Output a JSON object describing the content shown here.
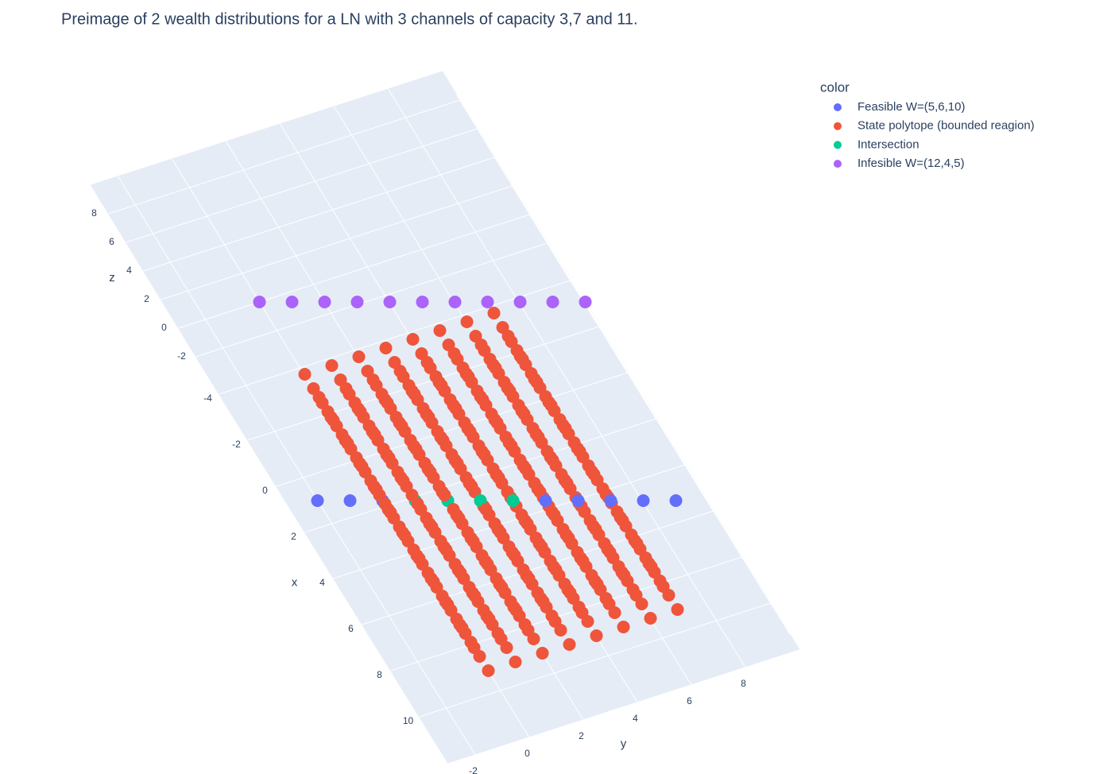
{
  "chart_data": {
    "type": "scatter3d",
    "title": "Preimage of 2 wealth distributions for a LN with 3 channels of capacity 3,7 and 11.",
    "x_label": "x",
    "y_label": "y",
    "z_label": "z",
    "legend_title": "color",
    "xlim": [
      -5,
      12
    ],
    "ylim": [
      -3,
      10
    ],
    "zlim": [
      -3,
      10
    ],
    "xticks": [
      -4,
      -2,
      0,
      2,
      4,
      6,
      8,
      10
    ],
    "yticks": [
      -2,
      0,
      2,
      4,
      6,
      8
    ],
    "zticks": [
      -2,
      0,
      2,
      4,
      6,
      8
    ],
    "grid": true,
    "series": [
      {
        "name": "Feasible W=(5,6,10)",
        "color": "#636efa",
        "x": [
          1,
          2,
          3,
          8,
          9,
          10,
          11,
          12
        ],
        "y": [
          -2,
          -1,
          0,
          5,
          6,
          7,
          8,
          9
        ],
        "z": [
          -3,
          -2,
          -1,
          4,
          5,
          6,
          7,
          8
        ]
      },
      {
        "name": "State polytope (bounded reagion)",
        "color": "#ef553b",
        "x": [
          0,
          0,
          0,
          0,
          0,
          0,
          0,
          0,
          0,
          0,
          0,
          0,
          0,
          0,
          0,
          0,
          0,
          0,
          0,
          0,
          0,
          0,
          0,
          0,
          0,
          0,
          0,
          0,
          0,
          0,
          0,
          0,
          1,
          1,
          1,
          1,
          1,
          1,
          1,
          1,
          1,
          1,
          1,
          1,
          1,
          1,
          1,
          1,
          1,
          1,
          1,
          1,
          1,
          1,
          1,
          1,
          1,
          1,
          1,
          1,
          1,
          1,
          1,
          1,
          2,
          2,
          2,
          2,
          2,
          2,
          2,
          2,
          2,
          2,
          2,
          2,
          2,
          2,
          2,
          2,
          2,
          2,
          2,
          2,
          2,
          2,
          2,
          2,
          2,
          2,
          2,
          2,
          2,
          2,
          2,
          2,
          3,
          3,
          3,
          3,
          3,
          3,
          3,
          3,
          3,
          3,
          3,
          3,
          3,
          3,
          3,
          3,
          3,
          3,
          3,
          3,
          3,
          3,
          3,
          3,
          3,
          3,
          3,
          3,
          3,
          3,
          3,
          3,
          4,
          4,
          4,
          4,
          4,
          4,
          4,
          4,
          4,
          4,
          4,
          4,
          4,
          4,
          4,
          4,
          4,
          4,
          4,
          4,
          4,
          4,
          4,
          4,
          4,
          4,
          4,
          4,
          4,
          4,
          4,
          4,
          5,
          5,
          5,
          5,
          5,
          5,
          5,
          5,
          5,
          5,
          5,
          5,
          5,
          5,
          5,
          5,
          5,
          5,
          5,
          5,
          5,
          5,
          5,
          5,
          5,
          5,
          5,
          5,
          5,
          5,
          5,
          5,
          6,
          6,
          6,
          6,
          6,
          6,
          6,
          6,
          6,
          6,
          6,
          6,
          6,
          6,
          6,
          6,
          6,
          6,
          6,
          6,
          6,
          6,
          6,
          6,
          6,
          6,
          6,
          6,
          6,
          6,
          6,
          6,
          7,
          7,
          7,
          7,
          7,
          7,
          7,
          7,
          7,
          7,
          7,
          7,
          7,
          7,
          7,
          7,
          7,
          7,
          7,
          7,
          7,
          7,
          7,
          7,
          7,
          7,
          7,
          7,
          7,
          7,
          7,
          7,
          8,
          8,
          8,
          8,
          8,
          8,
          8,
          8,
          8,
          8,
          8,
          8,
          8,
          8,
          8,
          8,
          8,
          8,
          8,
          8,
          8,
          8,
          8,
          8,
          8,
          8,
          8,
          8,
          8,
          8,
          8,
          8,
          9,
          9,
          9,
          9,
          9,
          9,
          9,
          9,
          9,
          9,
          9,
          9,
          9,
          9,
          9,
          9,
          9,
          9,
          9,
          9,
          9,
          9,
          9,
          9,
          9,
          9,
          9,
          9,
          9,
          9,
          9,
          9,
          10,
          10,
          10,
          10,
          10,
          10,
          10,
          10,
          10,
          10,
          10,
          10,
          10,
          10,
          10,
          10,
          10,
          10,
          10,
          10,
          10,
          10,
          10,
          10,
          10,
          10,
          10,
          10,
          10,
          10,
          10,
          10,
          11,
          11,
          11,
          11,
          11,
          11,
          11,
          11,
          11,
          11,
          11,
          11,
          11,
          11,
          11,
          11,
          11,
          11,
          11,
          11,
          11,
          11,
          11,
          11,
          11,
          11,
          11,
          11,
          11,
          11,
          11,
          11
        ],
        "y": [
          0,
          0,
          0,
          0,
          1,
          1,
          1,
          1,
          2,
          2,
          2,
          2,
          3,
          3,
          3,
          3,
          4,
          4,
          4,
          4,
          5,
          5,
          5,
          5,
          6,
          6,
          6,
          6,
          7,
          7,
          7,
          7,
          0,
          0,
          0,
          0,
          1,
          1,
          1,
          1,
          2,
          2,
          2,
          2,
          3,
          3,
          3,
          3,
          4,
          4,
          4,
          4,
          5,
          5,
          5,
          5,
          6,
          6,
          6,
          6,
          7,
          7,
          7,
          7,
          0,
          0,
          0,
          0,
          1,
          1,
          1,
          1,
          2,
          2,
          2,
          2,
          3,
          3,
          3,
          3,
          4,
          4,
          4,
          4,
          5,
          5,
          5,
          5,
          6,
          6,
          6,
          6,
          7,
          7,
          7,
          7,
          0,
          0,
          0,
          0,
          1,
          1,
          1,
          1,
          2,
          2,
          2,
          2,
          3,
          3,
          3,
          3,
          4,
          4,
          4,
          4,
          5,
          5,
          5,
          5,
          6,
          6,
          6,
          6,
          7,
          7,
          7,
          7,
          0,
          0,
          0,
          0,
          1,
          1,
          1,
          1,
          2,
          2,
          2,
          2,
          3,
          3,
          3,
          3,
          4,
          4,
          4,
          4,
          5,
          5,
          5,
          5,
          6,
          6,
          6,
          6,
          7,
          7,
          7,
          7,
          0,
          0,
          0,
          0,
          1,
          1,
          1,
          1,
          2,
          2,
          2,
          2,
          3,
          3,
          3,
          3,
          4,
          4,
          4,
          4,
          5,
          5,
          5,
          5,
          6,
          6,
          6,
          6,
          7,
          7,
          7,
          7,
          0,
          0,
          0,
          0,
          1,
          1,
          1,
          1,
          2,
          2,
          2,
          2,
          3,
          3,
          3,
          3,
          4,
          4,
          4,
          4,
          5,
          5,
          5,
          5,
          6,
          6,
          6,
          6,
          7,
          7,
          7,
          7,
          0,
          0,
          0,
          0,
          1,
          1,
          1,
          1,
          2,
          2,
          2,
          2,
          3,
          3,
          3,
          3,
          4,
          4,
          4,
          4,
          5,
          5,
          5,
          5,
          6,
          6,
          6,
          6,
          7,
          7,
          7,
          7,
          0,
          0,
          0,
          0,
          1,
          1,
          1,
          1,
          2,
          2,
          2,
          2,
          3,
          3,
          3,
          3,
          4,
          4,
          4,
          4,
          5,
          5,
          5,
          5,
          6,
          6,
          6,
          6,
          7,
          7,
          7,
          7,
          0,
          0,
          0,
          0,
          1,
          1,
          1,
          1,
          2,
          2,
          2,
          2,
          3,
          3,
          3,
          3,
          4,
          4,
          4,
          4,
          5,
          5,
          5,
          5,
          6,
          6,
          6,
          6,
          7,
          7,
          7,
          7,
          0,
          0,
          0,
          0,
          1,
          1,
          1,
          1,
          2,
          2,
          2,
          2,
          3,
          3,
          3,
          3,
          4,
          4,
          4,
          4,
          5,
          5,
          5,
          5,
          6,
          6,
          6,
          6,
          7,
          7,
          7,
          7,
          0,
          0,
          0,
          0,
          1,
          1,
          1,
          1,
          2,
          2,
          2,
          2,
          3,
          3,
          3,
          3,
          4,
          4,
          4,
          4,
          5,
          5,
          5,
          5,
          6,
          6,
          6,
          6,
          7,
          7,
          7,
          7
        ],
        "z": [
          0,
          1,
          2,
          3,
          0,
          1,
          2,
          3,
          0,
          1,
          2,
          3,
          0,
          1,
          2,
          3,
          0,
          1,
          2,
          3,
          0,
          1,
          2,
          3,
          0,
          1,
          2,
          3,
          0,
          1,
          2,
          3,
          0,
          1,
          2,
          3,
          0,
          1,
          2,
          3,
          0,
          1,
          2,
          3,
          0,
          1,
          2,
          3,
          0,
          1,
          2,
          3,
          0,
          1,
          2,
          3,
          0,
          1,
          2,
          3,
          0,
          1,
          2,
          3,
          0,
          1,
          2,
          3,
          0,
          1,
          2,
          3,
          0,
          1,
          2,
          3,
          0,
          1,
          2,
          3,
          0,
          1,
          2,
          3,
          0,
          1,
          2,
          3,
          0,
          1,
          2,
          3,
          0,
          1,
          2,
          3,
          0,
          1,
          2,
          3,
          0,
          1,
          2,
          3,
          0,
          1,
          2,
          3,
          0,
          1,
          2,
          3,
          0,
          1,
          2,
          3,
          0,
          1,
          2,
          3,
          0,
          1,
          2,
          3,
          0,
          1,
          2,
          3,
          0,
          1,
          2,
          3,
          0,
          1,
          2,
          3,
          0,
          1,
          2,
          3,
          0,
          1,
          2,
          3,
          0,
          1,
          2,
          3,
          0,
          1,
          2,
          3,
          0,
          1,
          2,
          3,
          0,
          1,
          2,
          3,
          0,
          1,
          2,
          3,
          0,
          1,
          2,
          3,
          0,
          1,
          2,
          3,
          0,
          1,
          2,
          3,
          0,
          1,
          2,
          3,
          0,
          1,
          2,
          3,
          0,
          1,
          2,
          3,
          0,
          1,
          2,
          3,
          0,
          1,
          2,
          3,
          0,
          1,
          2,
          3,
          0,
          1,
          2,
          3,
          0,
          1,
          2,
          3,
          0,
          1,
          2,
          3,
          0,
          1,
          2,
          3,
          0,
          1,
          2,
          3,
          0,
          1,
          2,
          3,
          0,
          1,
          2,
          3,
          0,
          1,
          2,
          3,
          0,
          1,
          2,
          3,
          0,
          1,
          2,
          3,
          0,
          1,
          2,
          3,
          0,
          1,
          2,
          3,
          0,
          1,
          2,
          3,
          0,
          1,
          2,
          3,
          0,
          1,
          2,
          3,
          0,
          1,
          2,
          3,
          0,
          1,
          2,
          3,
          0,
          1,
          2,
          3,
          0,
          1,
          2,
          3,
          0,
          1,
          2,
          3,
          0,
          1,
          2,
          3,
          0,
          1,
          2,
          3,
          0,
          1,
          2,
          3,
          0,
          1,
          2,
          3,
          0,
          1,
          2,
          3,
          0,
          1,
          2,
          3,
          0,
          1,
          2,
          3,
          0,
          1,
          2,
          3,
          0,
          1,
          2,
          3,
          0,
          1,
          2,
          3,
          0,
          1,
          2,
          3,
          0,
          1,
          2,
          3,
          0,
          1,
          2,
          3,
          0,
          1,
          2,
          3,
          0,
          1,
          2,
          3,
          0,
          1,
          2,
          3,
          0,
          1,
          2,
          3,
          0,
          1,
          2,
          3,
          0,
          1,
          2,
          3,
          0,
          1,
          2,
          3,
          0,
          1,
          2,
          3,
          0,
          1,
          2,
          3,
          0,
          1,
          2,
          3,
          0,
          1,
          2,
          3,
          0,
          1,
          2,
          3,
          0,
          1,
          2,
          3
        ]
      },
      {
        "name": "Intersection",
        "color": "#00cc96",
        "x": [
          4,
          5,
          6,
          7
        ],
        "y": [
          1,
          2,
          3,
          4
        ],
        "z": [
          0,
          1,
          2,
          3
        ]
      },
      {
        "name": "Infesible W=(12,4,5)",
        "color": "#ab63fa",
        "x": [
          -5,
          -4,
          -3,
          -2,
          -1,
          0,
          1,
          2,
          3,
          4,
          5
        ],
        "y": [
          0,
          1,
          2,
          3,
          4,
          5,
          6,
          7,
          8,
          9,
          10
        ],
        "z": [
          0,
          1,
          2,
          3,
          4,
          5,
          6,
          7,
          8,
          9,
          10
        ]
      }
    ]
  }
}
